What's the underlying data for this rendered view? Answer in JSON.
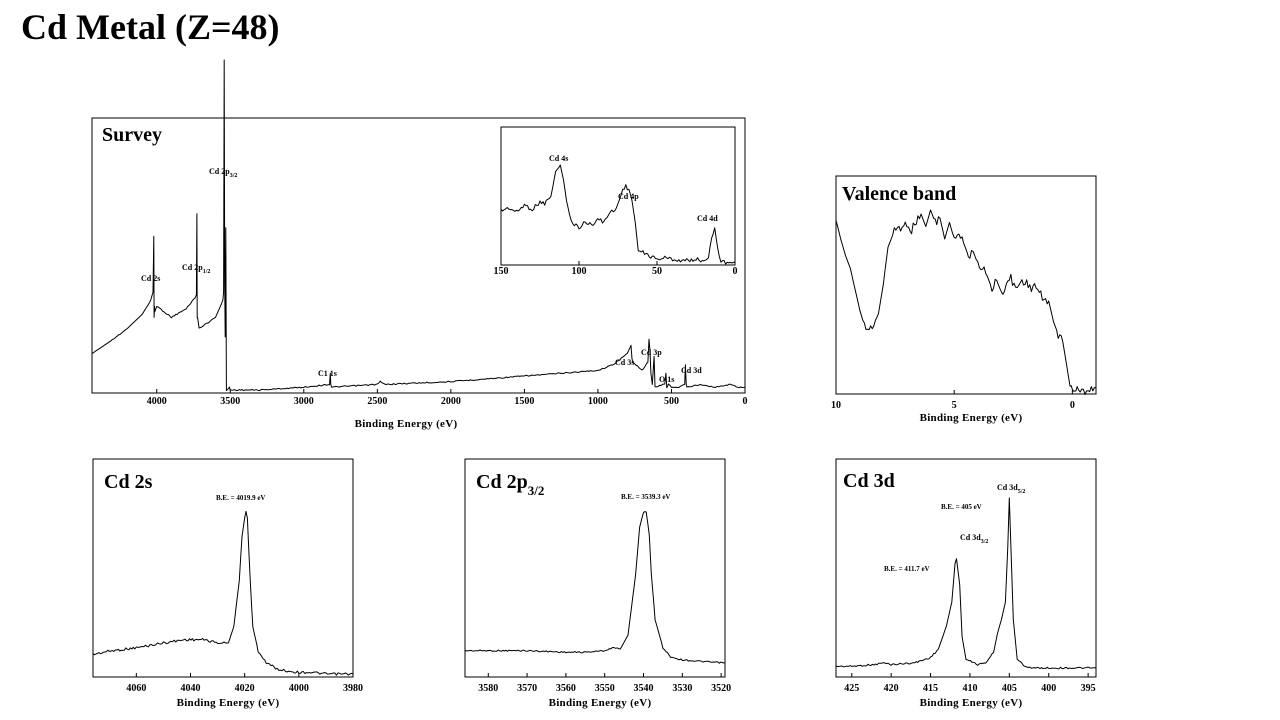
{
  "title": "Cd Metal (Z=48)",
  "chart_data": [
    {
      "id": "survey",
      "type": "line",
      "title": "Survey",
      "xlabel": "Binding Energy (eV)",
      "xlim": [
        4440,
        0
      ],
      "x_reversed": true,
      "xticks": [
        4000,
        3500,
        3000,
        2500,
        2000,
        1500,
        1000,
        500,
        0
      ],
      "series": [
        {
          "x": [
            4440,
            4300,
            4200,
            4100,
            4040,
            4025,
            4020,
            4018,
            4015,
            4012,
            4000,
            3900,
            3800,
            3740,
            3730,
            3727,
            3725,
            3722,
            3712,
            3600,
            3550,
            3545,
            3541,
            3538,
            3534,
            3530,
            3526,
            3520,
            3505,
            3500,
            3300,
            3000,
            2825,
            2820,
            2816,
            2810,
            2500,
            2480,
            2450,
            2000,
            1500,
            1000,
            900,
            800,
            775,
            768,
            760,
            700,
            660,
            653,
            646,
            640,
            630,
            618,
            612,
            560,
            545,
            538,
            532,
            520,
            500,
            450,
            410,
            405,
            400,
            395,
            300,
            200,
            100,
            50,
            20,
            0
          ],
          "y": [
            15,
            20,
            24,
            29,
            34,
            37,
            57,
            28,
            32,
            30,
            32,
            28,
            31,
            35,
            36,
            65,
            28,
            28,
            24,
            28,
            34,
            37,
            120,
            40,
            21,
            60,
            2,
            2,
            3,
            2,
            2,
            3,
            4,
            8,
            4,
            3,
            4,
            5,
            4,
            5,
            7,
            9,
            11,
            15,
            18,
            13,
            12,
            9,
            12,
            20,
            16,
            8,
            4,
            14,
            3,
            4,
            4,
            8,
            3,
            4,
            3,
            3,
            4,
            11,
            4,
            3,
            4,
            3,
            4,
            3,
            3,
            3
          ]
        }
      ],
      "annotations": {
        "cd2s": "Cd 2s",
        "cd2p12": "Cd 2p",
        "cd2p12_sub": "1/2",
        "cd2p32": "Cd 2p",
        "cd2p32_sub": "3/2",
        "c1s": "C1 1s",
        "cd3s": "Cd 3s",
        "cd3p": "Cd 3p",
        "o1s": "O 1s",
        "cd3d": "Cd 3d"
      },
      "inset": {
        "type": "line",
        "xlim": [
          150,
          0
        ],
        "xticks": [
          150,
          100,
          50,
          0
        ],
        "series": [
          {
            "x": [
              150,
              145,
              140,
              135,
              130,
              125,
              122,
              118,
              115,
              112,
              110,
              108,
              105,
              102,
              100,
              96,
              92,
              88,
              84,
              80,
              76,
              72,
              70,
              68,
              66,
              64,
              62,
              58,
              54,
              50,
              45,
              40,
              35,
              30,
              25,
              20,
              17,
              15,
              13,
              11,
              9,
              7,
              5,
              3,
              0
            ],
            "y": [
              38,
              40,
              37,
              42,
              39,
              44,
              43,
              48,
              65,
              70,
              60,
              45,
              30,
              28,
              26,
              30,
              28,
              32,
              30,
              37,
              40,
              52,
              55,
              53,
              45,
              30,
              10,
              8,
              6,
              4,
              5,
              4,
              3,
              3,
              4,
              3,
              5,
              20,
              26,
              10,
              3,
              2,
              2,
              2,
              2
            ]
          }
        ],
        "annotations": {
          "cd4s": "Cd 4s",
          "cd4p": "Cd 4p",
          "cd4d": "Cd 4d"
        }
      }
    },
    {
      "id": "valence",
      "type": "line",
      "title": "Valence band",
      "xlabel": "Binding Energy (eV)",
      "xlim": [
        10,
        -1
      ],
      "x_reversed": true,
      "xticks": [
        10,
        5,
        0
      ],
      "series": [
        {
          "x": [
            10,
            9.8,
            9.6,
            9.4,
            9.2,
            9.0,
            8.8,
            8.6,
            8.4,
            8.2,
            8.0,
            7.8,
            7.6,
            7.4,
            7.2,
            7.0,
            6.8,
            6.6,
            6.4,
            6.2,
            6.0,
            5.8,
            5.6,
            5.4,
            5.2,
            5.0,
            4.8,
            4.6,
            4.4,
            4.2,
            4.0,
            3.8,
            3.6,
            3.4,
            3.2,
            3.0,
            2.8,
            2.6,
            2.4,
            2.2,
            2.0,
            1.8,
            1.6,
            1.4,
            1.2,
            1.0,
            0.8,
            0.6,
            0.4,
            0.2,
            0.1,
            0.0,
            -0.1,
            -0.2,
            -0.4,
            -0.6,
            -0.8,
            -1.0
          ],
          "y": [
            83,
            74,
            66,
            60,
            50,
            40,
            32,
            30,
            33,
            38,
            52,
            70,
            76,
            80,
            79,
            82,
            78,
            83,
            86,
            80,
            88,
            82,
            84,
            74,
            82,
            74,
            76,
            72,
            66,
            68,
            62,
            60,
            56,
            50,
            54,
            48,
            52,
            55,
            50,
            53,
            54,
            50,
            52,
            48,
            44,
            44,
            34,
            28,
            24,
            10,
            3,
            2,
            1,
            1,
            0,
            1,
            2,
            2
          ]
        }
      ]
    },
    {
      "id": "cd2s",
      "type": "line",
      "title": "Cd 2s",
      "xlabel": "Binding Energy (eV)",
      "xlim": [
        4076,
        3980
      ],
      "x_reversed": true,
      "xticks": [
        4060,
        4040,
        4020,
        4000,
        3980
      ],
      "series": [
        {
          "x": [
            4076,
            4070,
            4060,
            4050,
            4042,
            4035,
            4030,
            4026,
            4024,
            4022,
            4021,
            4020,
            4019.5,
            4019,
            4018,
            4017,
            4015,
            4012,
            4008,
            4005,
            4000,
            3995,
            3990,
            3980
          ],
          "y": [
            13,
            15,
            17,
            20,
            22,
            22,
            20,
            20,
            30,
            58,
            85,
            96,
            100,
            96,
            60,
            30,
            15,
            8,
            4,
            3,
            2,
            2,
            1,
            1
          ]
        }
      ],
      "annotation": "B.E. = 4019.9 eV"
    },
    {
      "id": "cd2p32",
      "type": "line",
      "title": "Cd 2p",
      "title_sub": "3/2",
      "xlabel": "Binding Energy (eV)",
      "xlim": [
        3586,
        3519
      ],
      "x_reversed": true,
      "xticks": [
        3580,
        3570,
        3560,
        3550,
        3540,
        3530,
        3520
      ],
      "series": [
        {
          "x": [
            3586,
            3570,
            3560,
            3555,
            3550,
            3548,
            3546,
            3544,
            3542,
            3541,
            3540,
            3539.3,
            3538.5,
            3538,
            3537,
            3535,
            3533,
            3530,
            3525,
            3519
          ],
          "y": [
            10,
            10,
            9,
            9,
            10,
            12,
            11,
            20,
            60,
            90,
            100,
            100,
            85,
            60,
            30,
            12,
            6,
            4,
            3,
            2
          ]
        }
      ],
      "annotation": "B.E. = 3539.3 eV"
    },
    {
      "id": "cd3d",
      "type": "line",
      "title": "Cd 3d",
      "xlabel": "Binding Energy (eV)",
      "xlim": [
        427,
        394
      ],
      "x_reversed": true,
      "xticks": [
        425,
        420,
        415,
        410,
        405,
        400,
        395
      ],
      "series": [
        {
          "x": [
            427,
            425,
            422,
            421,
            420,
            417,
            415,
            414,
            413,
            412.3,
            411.9,
            411.7,
            411.3,
            411,
            410.5,
            409,
            408,
            407,
            406.5,
            406,
            405.5,
            405.2,
            405,
            404.8,
            404.5,
            404,
            403,
            402,
            400,
            397,
            394
          ],
          "y": [
            3,
            3,
            4,
            5,
            4,
            5,
            8,
            13,
            26,
            40,
            62,
            65,
            50,
            20,
            7,
            4,
            5,
            11,
            22,
            30,
            40,
            72,
            100,
            72,
            30,
            7,
            3,
            2,
            2,
            2,
            2
          ]
        }
      ],
      "annotations": {
        "cd3d32": "Cd 3d",
        "cd3d32_sub": "3/2",
        "cd3d52": "Cd 3d",
        "cd3d52_sub": "5/2",
        "be_3d32": "B.E. = 411.7 eV",
        "be_3d52": "B.E. = 405 eV"
      }
    }
  ]
}
